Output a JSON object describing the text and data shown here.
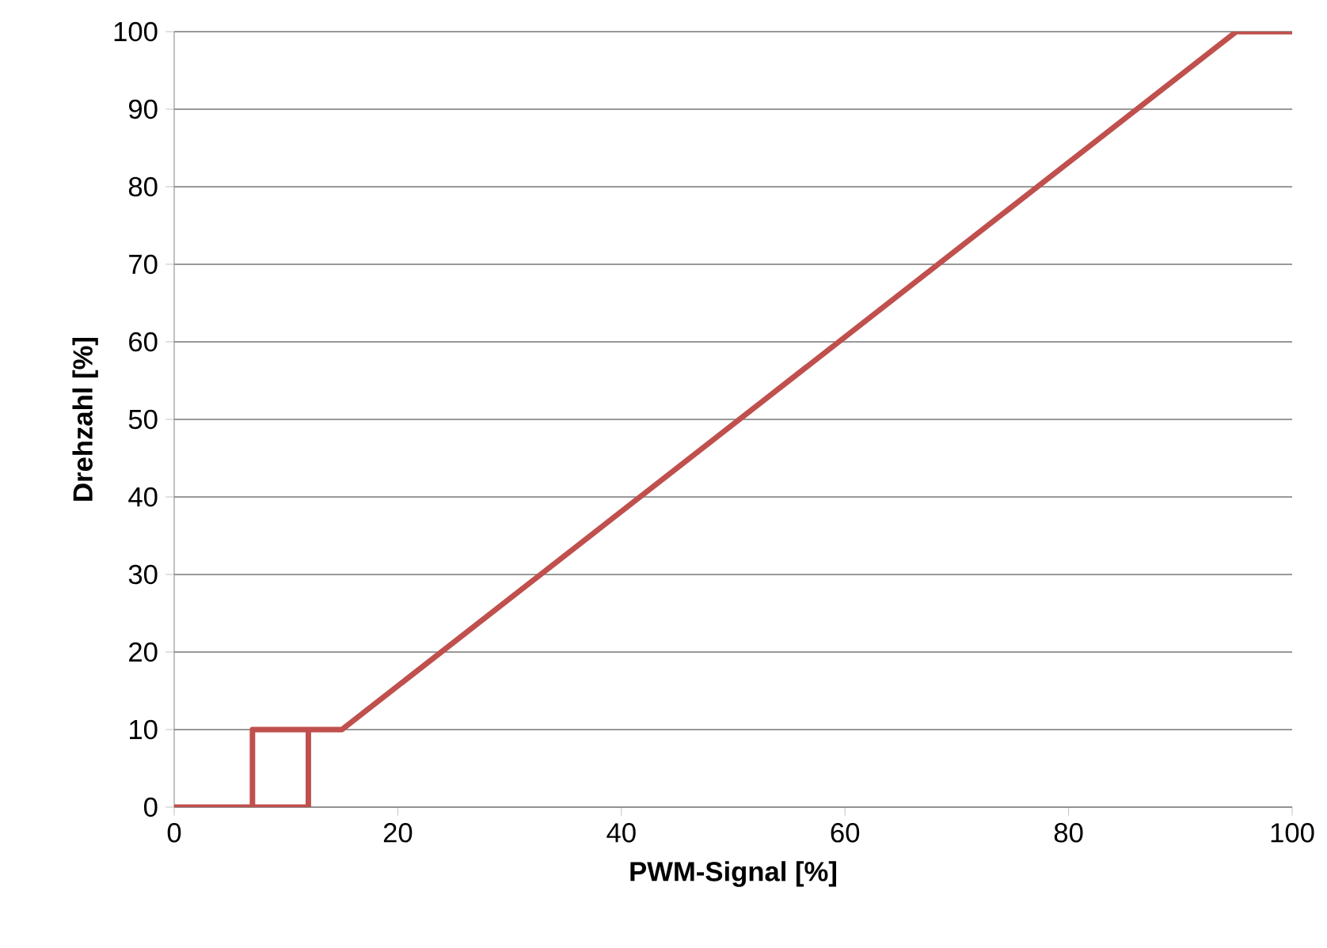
{
  "chart_data": {
    "type": "line",
    "xlabel": "PWM-Signal [%]",
    "ylabel": "Drehzahl [%]",
    "series": [
      {
        "color": "#c0504d",
        "x": [
          0,
          12,
          12,
          7,
          7,
          7,
          15,
          95,
          100
        ],
        "values": [
          0,
          0,
          10,
          10,
          0,
          10,
          10,
          100,
          100
        ]
      }
    ],
    "xlim": [
      0,
      100
    ],
    "ylim": [
      0,
      100
    ],
    "xticks": [
      0,
      20,
      40,
      60,
      80,
      100
    ],
    "yticks": [
      0,
      10,
      20,
      30,
      40,
      50,
      60,
      70,
      80,
      90,
      100
    ],
    "grid": "y",
    "marker": "none",
    "line_style": "solid"
  }
}
